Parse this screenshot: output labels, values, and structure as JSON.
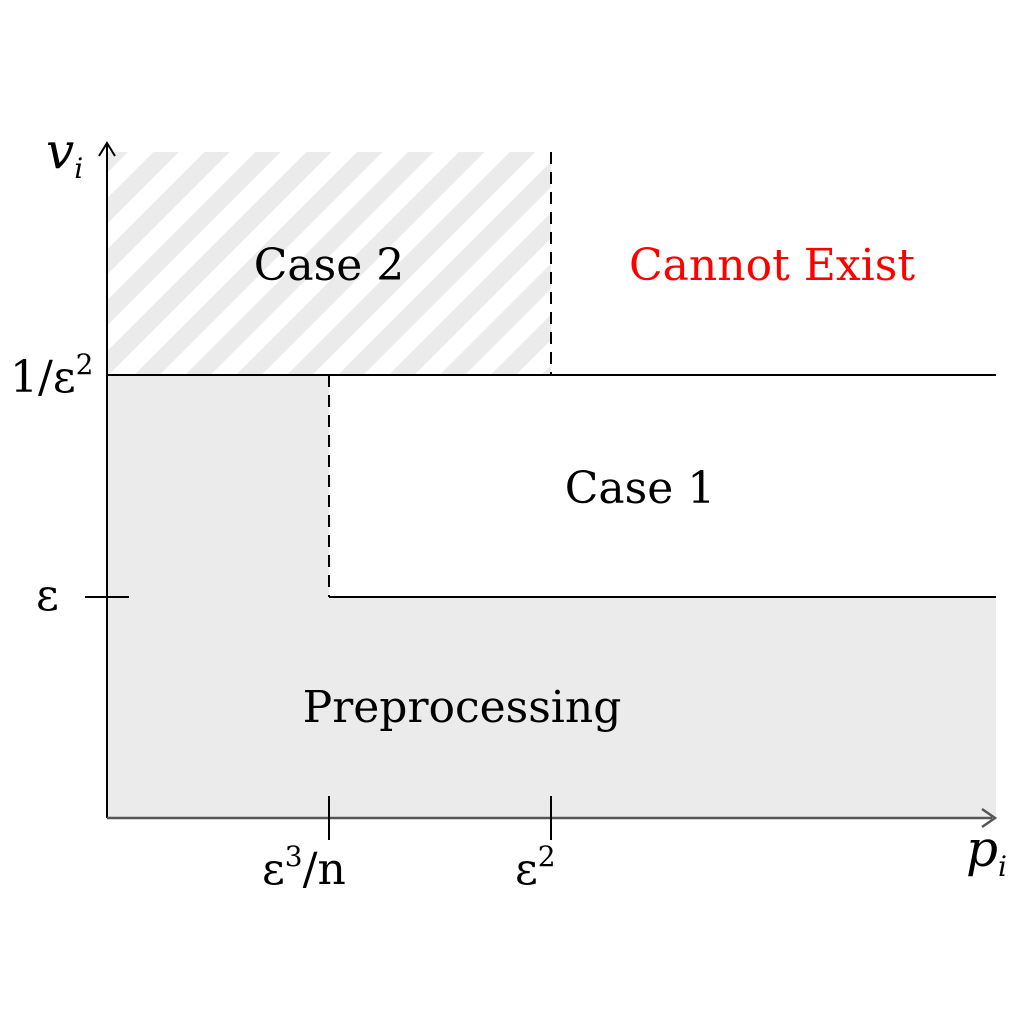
{
  "axes": {
    "y_label": "v",
    "y_subscript": "i",
    "x_label": "p",
    "x_subscript": "i"
  },
  "ticks": {
    "y_upper": {
      "base": "1/ε",
      "sup": "2"
    },
    "y_lower": {
      "base": "ε"
    },
    "x_left": {
      "base": "ε",
      "sup": "3",
      "tail": "/n"
    },
    "x_right": {
      "base": "ε",
      "sup": "2"
    }
  },
  "regions": {
    "case2": "Case 2",
    "cannot_exist": "Cannot Exist",
    "case1": "Case 1",
    "preprocessing": "Preprocessing"
  },
  "colors": {
    "shade": "#ebebeb",
    "line": "#000000",
    "warning_text": "#ff0000"
  }
}
